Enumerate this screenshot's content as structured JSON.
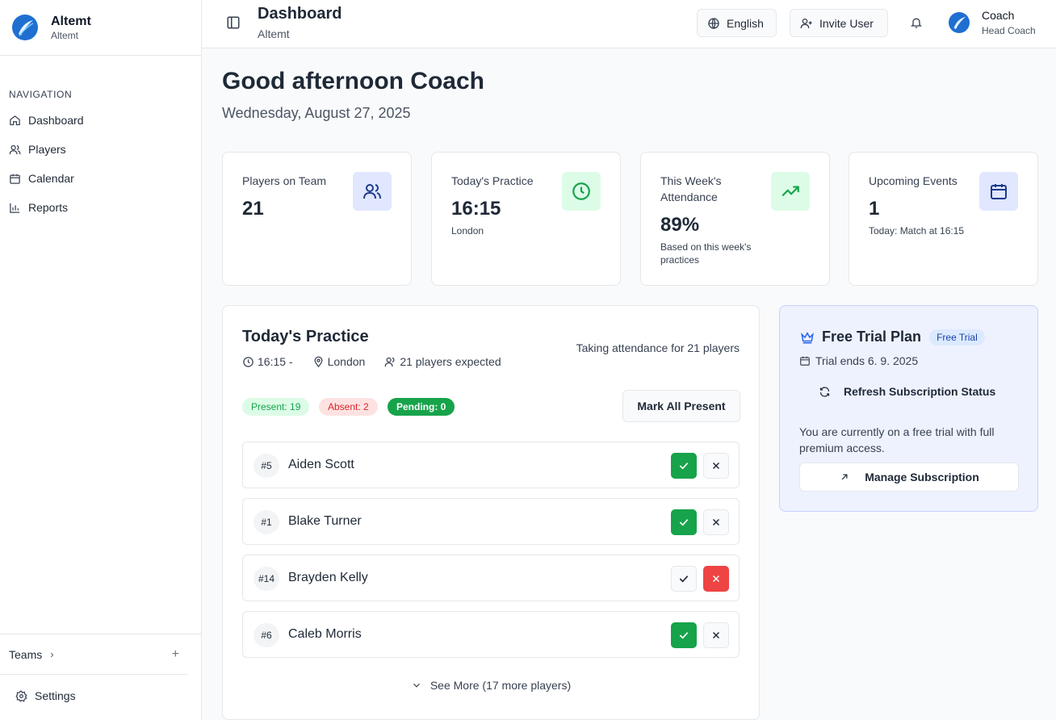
{
  "sidebar": {
    "brand_name": "Altemt",
    "brand_sub": "Altemt",
    "nav_label": "NAVIGATION",
    "items": [
      {
        "label": "Dashboard",
        "icon": "home-icon"
      },
      {
        "label": "Players",
        "icon": "users-icon"
      },
      {
        "label": "Calendar",
        "icon": "calendar-icon"
      },
      {
        "label": "Reports",
        "icon": "bar-chart-icon"
      }
    ],
    "teams_label": "Teams",
    "settings_label": "Settings"
  },
  "header": {
    "title": "Dashboard",
    "subtitle": "Altemt",
    "language_label": "English",
    "invite_label": "Invite User",
    "user_name": "Coach",
    "user_role": "Head Coach"
  },
  "main": {
    "greeting": "Good afternoon Coach",
    "date": "Wednesday, August 27, 2025",
    "stats": [
      {
        "label": "Players on Team",
        "value": "21",
        "note": "",
        "icon": "users-icon",
        "icon_bg": "#e0e7ff",
        "icon_color": "#1e3a8a"
      },
      {
        "label": "Today's Practice",
        "value": "16:15",
        "note": "London",
        "icon": "clock-icon",
        "icon_bg": "#dcfce7",
        "icon_color": "#16a34a"
      },
      {
        "label": "This Week's Attendance",
        "value": "89%",
        "note": "Based on this week's practices",
        "icon": "trending-up-icon",
        "icon_bg": "#dcfce7",
        "icon_color": "#16a34a"
      },
      {
        "label": "Upcoming Events",
        "value": "1",
        "note": "Today: Match at 16:15",
        "icon": "calendar-icon",
        "icon_bg": "#e0e7ff",
        "icon_color": "#1e3a8a"
      }
    ]
  },
  "practice": {
    "title": "Today's Practice",
    "time": "16:15 -",
    "location": "London",
    "expected": "21 players expected",
    "taking": "Taking attendance for 21 players",
    "present": "Present: 19",
    "absent": "Absent: 2",
    "pending": "Pending: 0",
    "mark_all": "Mark All Present",
    "players": [
      {
        "number": "#5",
        "name": "Aiden Scott",
        "status": "present"
      },
      {
        "number": "#1",
        "name": "Blake Turner",
        "status": "present"
      },
      {
        "number": "#14",
        "name": "Brayden Kelly",
        "status": "absent"
      },
      {
        "number": "#6",
        "name": "Caleb Morris",
        "status": "present"
      }
    ],
    "see_more": "See More (17 more players)"
  },
  "trial": {
    "title": "Free Trial Plan",
    "badge": "Free Trial",
    "ends": "Trial ends 6. 9. 2025",
    "refresh": "Refresh Subscription Status",
    "description": "You are currently on a free trial with full premium access.",
    "manage": "Manage Subscription"
  },
  "colors": {
    "present": "#16a34a",
    "absent": "#ef4444",
    "brand": "#1f6fd1"
  }
}
